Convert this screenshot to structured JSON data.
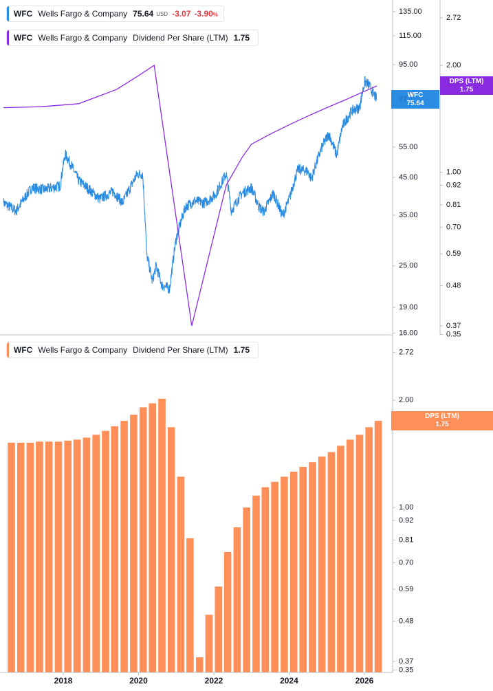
{
  "colors": {
    "price": "#2a8be2",
    "dps_line": "#8a2be2",
    "bars": "#ff8f59",
    "axis": "#b8bcc4",
    "text": "#131722",
    "negative": "#e5393f"
  },
  "legend_price": {
    "symbol": "WFC",
    "name": "Wells Fargo & Company",
    "value": "75.64",
    "currency": "USD",
    "change": "-3.07",
    "change_pct": "-3.90",
    "pct_sign": "%"
  },
  "legend_dps": {
    "symbol": "WFC",
    "name": "Wells Fargo & Company",
    "metric": "Dividend Per Share (LTM)",
    "value": "1.75"
  },
  "legend_bars": {
    "symbol": "WFC",
    "name": "Wells Fargo & Company",
    "metric": "Dividend Per Share (LTM)",
    "value": "1.75"
  },
  "price_tag": {
    "label": "WFC",
    "value": "75.64",
    "hidden_prefix": "77"
  },
  "dps_tag_top": {
    "label": "DPS (LTM)",
    "value": "1.75"
  },
  "dps_tag_bottom": {
    "label": "DPS (LTM)",
    "value": "1.75"
  },
  "chart_data": [
    {
      "type": "line",
      "panel": "top",
      "scale": "log",
      "price_axis": {
        "ticks": [
          "135.00",
          "115.00",
          "95.00",
          "55.00",
          "45.00",
          "35.00",
          "25.00",
          "19.00",
          "16.00"
        ]
      },
      "dps_axis": {
        "ticks": [
          "2.72",
          "2.00",
          "1.00",
          "0.92",
          "0.81",
          "0.70",
          "0.59",
          "0.48",
          "0.37",
          "0.35"
        ]
      },
      "series": [
        {
          "name": "WFC",
          "color": "#2a8be2",
          "x": [
            "2016-06-01",
            "2016-10-01",
            "2017-03-01",
            "2017-07-01",
            "2017-12-01",
            "2018-01-20",
            "2018-06-01",
            "2018-12-20",
            "2019-05-01",
            "2019-08-01",
            "2019-12-20",
            "2020-02-10",
            "2020-03-20",
            "2020-05-15",
            "2020-06-20",
            "2020-08-15",
            "2020-10-30",
            "2021-01-01",
            "2021-04-01",
            "2021-07-01",
            "2021-10-01",
            "2022-01-15",
            "2022-05-01",
            "2022-06-20",
            "2022-10-01",
            "2022-12-31",
            "2023-03-15",
            "2023-05-01",
            "2023-08-01",
            "2023-10-30",
            "2024-01-01",
            "2024-03-28",
            "2024-07-01",
            "2024-08-05",
            "2024-11-15",
            "2025-01-20",
            "2025-04-08",
            "2025-06-01",
            "2025-09-01",
            "2025-11-15",
            "2026-01-05",
            "2026-02-15",
            "2026-04-01",
            "2026-05-01"
          ],
          "y": [
            38,
            36,
            42,
            41.5,
            42.5,
            52.5,
            44,
            39,
            41,
            38,
            46,
            46,
            27,
            22.5,
            25,
            22,
            21.5,
            30,
            37,
            38.5,
            38,
            40,
            46,
            36,
            40.5,
            42,
            37,
            35.8,
            40.5,
            34.8,
            38.8,
            47.5,
            46.8,
            44.5,
            55,
            60,
            52,
            63,
            70,
            71.5,
            85,
            83,
            78,
            75.64
          ]
        },
        {
          "name": "Dividend Per Share (LTM)",
          "color": "#8a2be2",
          "x": [
            "2016-06-01",
            "2017-06-01",
            "2018-06-01",
            "2019-06-01",
            "2020-01-01",
            "2020-06-01",
            "2021-06-01",
            "2022-05-01",
            "2022-10-01",
            "2023-01-01",
            "2023-07-01",
            "2024-01-01",
            "2024-07-01",
            "2025-01-01",
            "2025-07-01",
            "2026-01-01",
            "2026-05-01"
          ],
          "y": [
            1.52,
            1.53,
            1.56,
            1.71,
            1.87,
            2.0,
            0.37,
            0.92,
            1.1,
            1.2,
            1.28,
            1.36,
            1.44,
            1.52,
            1.6,
            1.69,
            1.75
          ]
        }
      ]
    },
    {
      "type": "bar",
      "panel": "bottom",
      "scale": "log",
      "title": "Dividend Per Share (LTM)",
      "y_axis": {
        "ticks": [
          "2.72",
          "2.00",
          "1.00",
          "0.92",
          "0.81",
          "0.70",
          "0.59",
          "0.48",
          "0.37",
          "0.35"
        ]
      },
      "x_axis": {
        "ticks": [
          "2018",
          "2020",
          "2022",
          "2024",
          "2026"
        ]
      },
      "x": [
        "2016-Q3",
        "2016-Q4",
        "2017-Q1",
        "2017-Q2",
        "2017-Q3",
        "2017-Q4",
        "2018-Q1",
        "2018-Q2",
        "2018-Q3",
        "2018-Q4",
        "2019-Q1",
        "2019-Q2",
        "2019-Q3",
        "2019-Q4",
        "2020-Q1",
        "2020-Q2",
        "2020-Q3",
        "2020-Q4",
        "2021-Q1",
        "2021-Q2",
        "2021-Q3",
        "2021-Q4",
        "2022-Q1",
        "2022-Q2",
        "2022-Q3",
        "2022-Q4",
        "2023-Q1",
        "2023-Q2",
        "2023-Q3",
        "2023-Q4",
        "2024-Q1",
        "2024-Q2",
        "2024-Q3",
        "2024-Q4",
        "2025-Q1",
        "2025-Q2",
        "2025-Q3",
        "2025-Q4",
        "2026-Q1",
        "2026-Q2"
      ],
      "values": [
        1.52,
        1.52,
        1.52,
        1.53,
        1.53,
        1.53,
        1.54,
        1.55,
        1.57,
        1.6,
        1.64,
        1.69,
        1.75,
        1.82,
        1.91,
        1.96,
        2.02,
        1.68,
        1.22,
        0.82,
        0.38,
        0.5,
        0.6,
        0.75,
        0.88,
        1.0,
        1.08,
        1.14,
        1.18,
        1.22,
        1.26,
        1.3,
        1.34,
        1.39,
        1.43,
        1.49,
        1.55,
        1.6,
        1.68,
        1.75
      ]
    }
  ]
}
